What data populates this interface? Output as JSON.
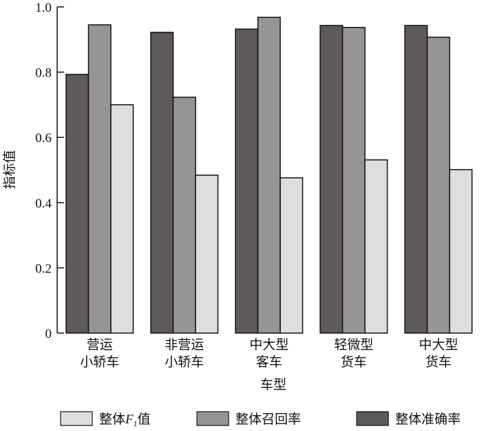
{
  "chart_data": {
    "type": "bar",
    "title": "",
    "xlabel": "车型",
    "ylabel": "指标值",
    "ylim": [
      0,
      1.0
    ],
    "yticks": [
      "0",
      "0.2",
      "0.4",
      "0.6",
      "0.8",
      "1.0"
    ],
    "categories": [
      [
        "营运",
        "小轿车"
      ],
      [
        "非营运",
        "小轿车"
      ],
      [
        "中大型",
        "客车"
      ],
      [
        "轻微型",
        "货车"
      ],
      [
        "中大型",
        "货车"
      ]
    ],
    "series": [
      {
        "name": "整体准确率",
        "color": "#5f5a5a",
        "values": [
          0.793,
          0.922,
          0.932,
          0.943,
          0.943
        ]
      },
      {
        "name": "整体召回率",
        "color": "#969594",
        "values": [
          0.945,
          0.723,
          0.968,
          0.937,
          0.907
        ]
      },
      {
        "name": "整体F1值",
        "color": "#dededd",
        "values": [
          0.7,
          0.484,
          0.476,
          0.531,
          0.501
        ]
      }
    ],
    "legend": {
      "placement": "bottom",
      "items": [
        {
          "prefix": "整体",
          "italic": "F",
          "sub": "1",
          "suffix": "值",
          "series": 2
        },
        {
          "label": "整体召回率",
          "series": 1
        },
        {
          "label": "整体准确率",
          "series": 0
        }
      ]
    }
  }
}
